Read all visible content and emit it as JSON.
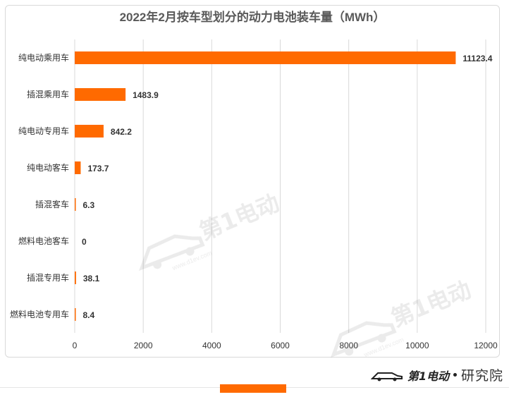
{
  "chart_data": {
    "type": "bar",
    "orientation": "horizontal",
    "title": "2022年2月按车型划分的动力电池装车量（MWh）",
    "categories": [
      "纯电动乘用车",
      "插混乘用车",
      "纯电动专用车",
      "纯电动客车",
      "插混客车",
      "燃料电池客车",
      "插混专用车",
      "燃料电池专用车"
    ],
    "values": [
      11123.4,
      1483.9,
      842.2,
      173.7,
      6.3,
      0,
      38.1,
      8.4
    ],
    "value_labels": [
      "11123.4",
      "1483.9",
      "842.2",
      "173.7",
      "6.3",
      "0",
      "38.1",
      "8.4"
    ],
    "xlim": [
      0,
      12000
    ],
    "xticks": [
      "0",
      "2000",
      "4000",
      "6000",
      "8000",
      "10000",
      "12000"
    ],
    "grid": true,
    "bar_color": "#ff6a00",
    "grid_color": "#d9d9d9"
  },
  "watermark": {
    "text": "第1电动",
    "site": "www.d1ev.com"
  },
  "footer": {
    "brand": "第1电动",
    "suffix": "研究院"
  },
  "colors": {
    "accent": "#ff6a00"
  }
}
